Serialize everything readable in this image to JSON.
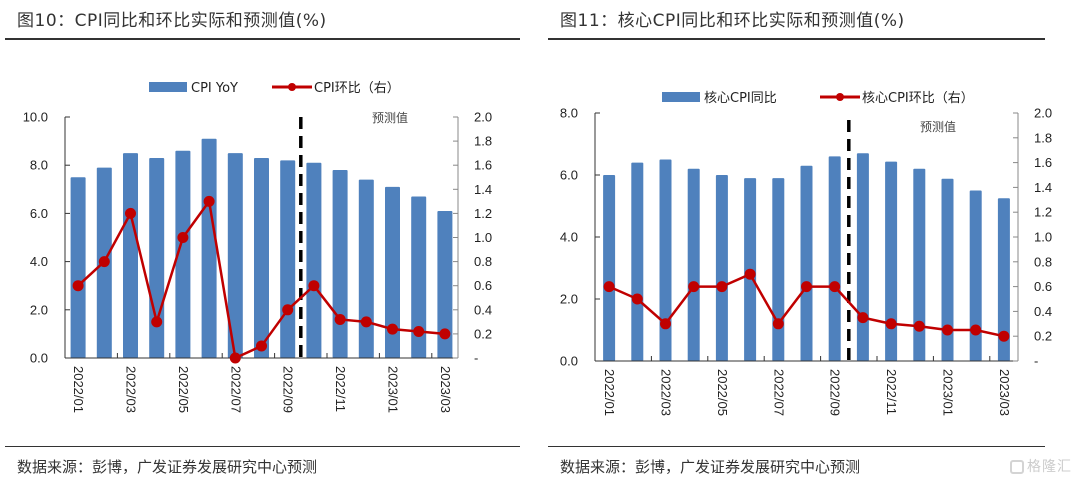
{
  "figures": [
    {
      "title": "图10：CPI同比和环比实际和预测值(%)",
      "source": "数据来源：彭博，广发证券发展研究中心预测"
    },
    {
      "title": "图11：核心CPI同比和环比实际和预测值(%)",
      "source": "数据来源：彭博，广发证券发展研究中心预测"
    }
  ],
  "watermark": "格隆汇",
  "colors": {
    "bar": "#4F81BD",
    "line": "#C00000",
    "divider": "#000000"
  },
  "chart_data": [
    {
      "type": "bar",
      "title": "CPI同比和环比实际和预测值(%)",
      "xlabel": "",
      "ylabel": "",
      "y2label": "",
      "categories": [
        "2022/01",
        "2022/02",
        "2022/03",
        "2022/04",
        "2022/05",
        "2022/06",
        "2022/07",
        "2022/08",
        "2022/09",
        "2022/10",
        "2022/11",
        "2022/12",
        "2023/01",
        "2023/02",
        "2023/03"
      ],
      "tick_labels": [
        "2022/01",
        "2022/03",
        "2022/05",
        "2022/07",
        "2022/09",
        "2022/11",
        "2023/01",
        "2023/03"
      ],
      "series": [
        {
          "name": "CPI YoY",
          "type": "bar",
          "axis": "left",
          "values": [
            7.5,
            7.9,
            8.5,
            8.3,
            8.6,
            9.1,
            8.5,
            8.3,
            8.2,
            8.1,
            7.8,
            7.4,
            7.1,
            6.7,
            6.1
          ]
        },
        {
          "name": "CPI环比（右）",
          "type": "line",
          "axis": "right",
          "values": [
            0.6,
            0.8,
            1.2,
            0.3,
            1.0,
            1.3,
            0.0,
            0.1,
            0.4,
            0.6,
            0.32,
            0.3,
            0.24,
            0.22,
            0.2
          ]
        }
      ],
      "ylim": [
        0,
        10
      ],
      "yticks": [
        "0.0",
        "2.0",
        "4.0",
        "6.0",
        "8.0",
        "10.0"
      ],
      "y2lim": [
        0,
        2
      ],
      "y2ticks": [
        "-",
        "0.2",
        "0.4",
        "0.6",
        "0.8",
        "1.0",
        "1.2",
        "1.4",
        "1.6",
        "1.8",
        "2.0"
      ],
      "forecast_divider_after": "2022/09",
      "annotation": "预测值",
      "legend": "top-center",
      "grid": false
    },
    {
      "type": "bar",
      "title": "核心CPI同比和环比实际和预测值(%)",
      "xlabel": "",
      "ylabel": "",
      "y2label": "",
      "categories": [
        "2022/01",
        "2022/02",
        "2022/03",
        "2022/04",
        "2022/05",
        "2022/06",
        "2022/07",
        "2022/08",
        "2022/09",
        "2022/10",
        "2022/11",
        "2022/12",
        "2023/01",
        "2023/02",
        "2023/03"
      ],
      "tick_labels": [
        "2022/01",
        "2022/03",
        "2022/05",
        "2022/07",
        "2022/09",
        "2022/11",
        "2023/01",
        "2023/03"
      ],
      "series": [
        {
          "name": "核心CPI同比",
          "type": "bar",
          "axis": "left",
          "values": [
            6.0,
            6.4,
            6.5,
            6.2,
            6.0,
            5.9,
            5.9,
            6.3,
            6.6,
            6.7,
            6.43,
            6.2,
            5.88,
            5.5,
            5.25
          ]
        },
        {
          "name": "核心CPI环比（右）",
          "type": "line",
          "axis": "right",
          "values": [
            0.6,
            0.5,
            0.3,
            0.6,
            0.6,
            0.7,
            0.3,
            0.6,
            0.6,
            0.35,
            0.3,
            0.28,
            0.25,
            0.25,
            0.2
          ]
        }
      ],
      "ylim": [
        0,
        8
      ],
      "yticks": [
        "0.0",
        "2.0",
        "4.0",
        "6.0",
        "8.0"
      ],
      "y2lim": [
        0,
        2
      ],
      "y2ticks": [
        "-",
        "0.2",
        "0.4",
        "0.6",
        "0.8",
        "1.0",
        "1.2",
        "1.4",
        "1.6",
        "1.8",
        "2.0"
      ],
      "forecast_divider_after": "2022/09",
      "annotation": "预测值",
      "legend": "top-center",
      "grid": false
    }
  ]
}
